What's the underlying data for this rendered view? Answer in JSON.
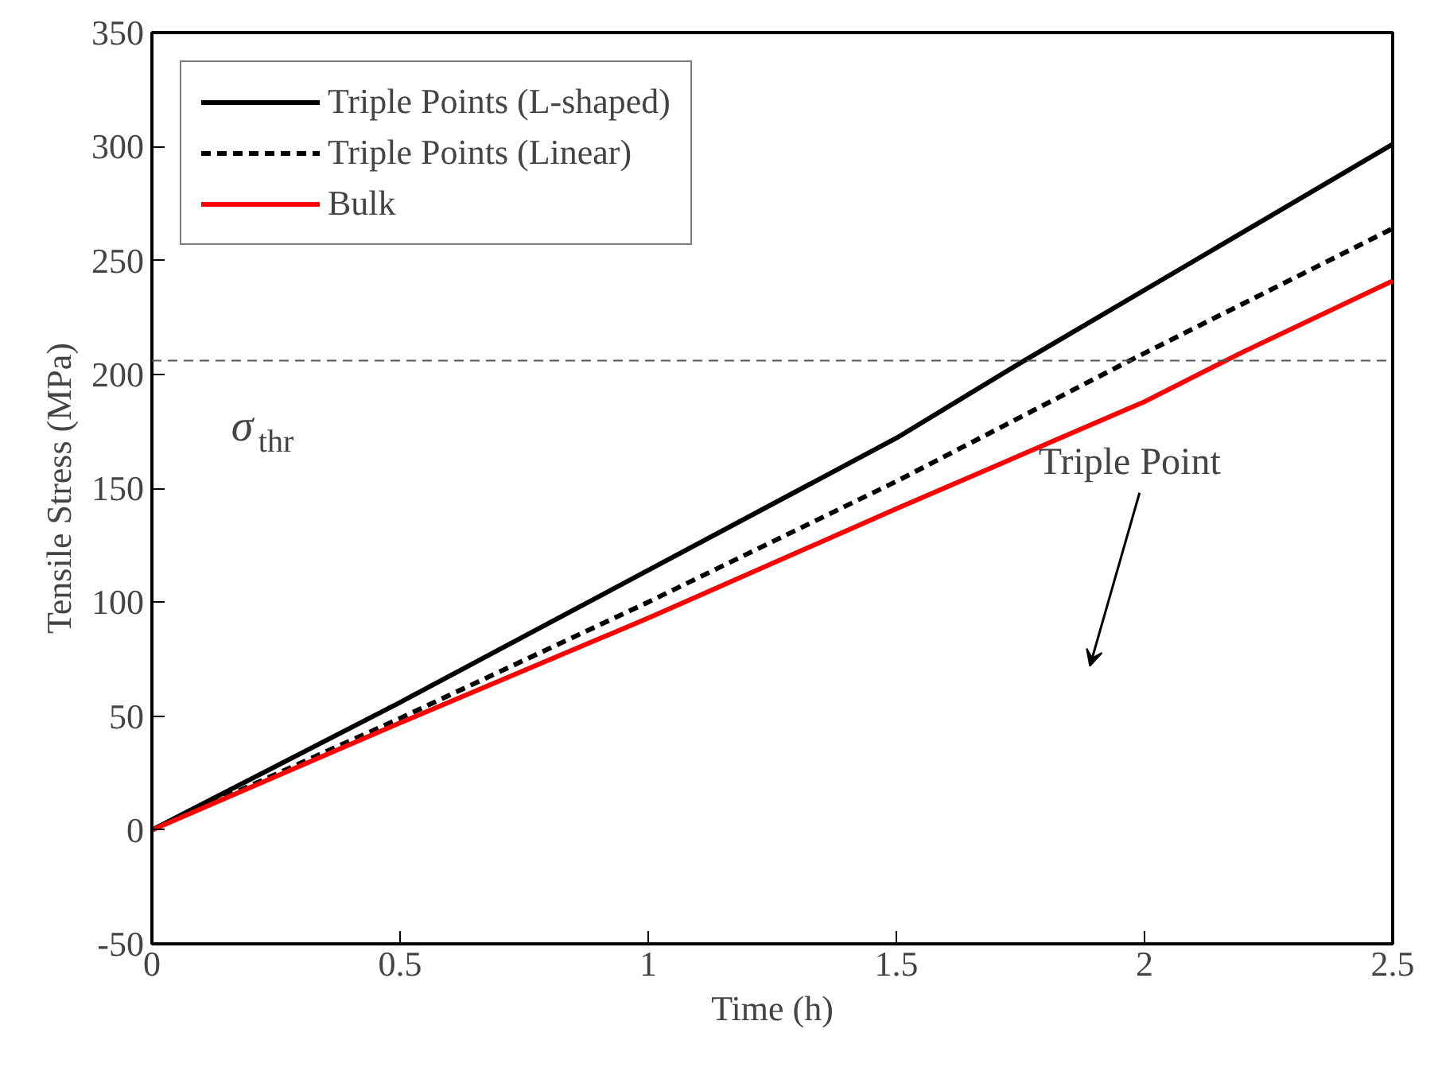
{
  "chart_data": {
    "type": "line",
    "xlabel": "Time (h)",
    "ylabel": "Tensile Stress (MPa)",
    "xlim": [
      0,
      2.5
    ],
    "xticks": [
      0,
      0.5,
      1,
      1.5,
      2,
      2.5
    ],
    "ylim": [
      -50,
      350
    ],
    "yticks": [
      -50,
      0,
      50,
      100,
      150,
      200,
      250,
      300,
      350
    ],
    "series": [
      {
        "name": "Triple Points (L-shaped)",
        "color": "#000000",
        "line_style": "solid",
        "x": [
          0,
          0.5,
          1,
          1.5,
          1.75,
          2,
          2.5
        ],
        "values": [
          0,
          56,
          114,
          172,
          205,
          237,
          301
        ]
      },
      {
        "name": "Triple Points (Linear)",
        "color": "#000000",
        "line_style": "dashed",
        "x": [
          0,
          0.5,
          1,
          1.5,
          1.97,
          2.5
        ],
        "values": [
          0,
          49,
          100,
          153,
          206,
          264
        ]
      },
      {
        "name": "Bulk",
        "color": "#ff0000",
        "line_style": "solid",
        "x": [
          0,
          0.5,
          1,
          1.5,
          2,
          2.2,
          2.5
        ],
        "values": [
          0,
          47,
          93,
          141,
          188,
          210,
          241
        ]
      }
    ],
    "ref_lines": [
      {
        "axis": "y",
        "value": 206,
        "label": "σ$_{thr}$",
        "color": "#555555",
        "line_style": "dashed"
      }
    ],
    "annotations": [
      "Triple Point"
    ],
    "legend": "top left",
    "grid": false
  }
}
